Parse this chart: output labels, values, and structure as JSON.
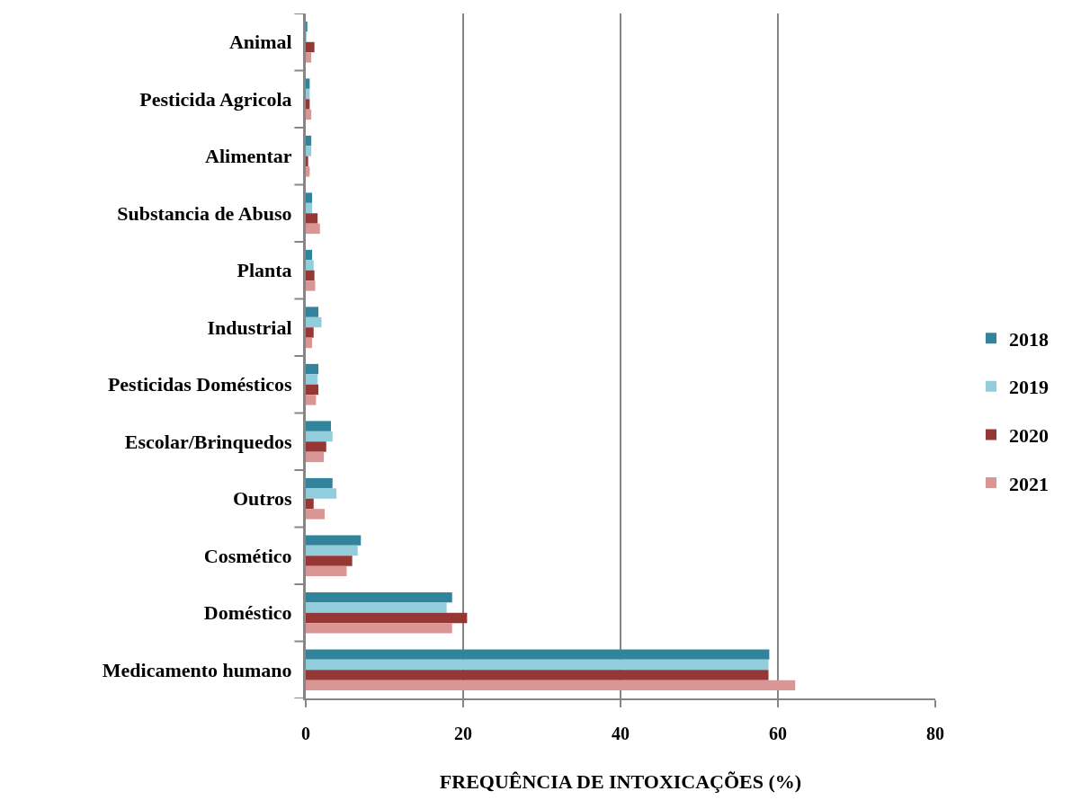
{
  "chart_data": {
    "type": "bar",
    "orientation": "horizontal",
    "categories": [
      "Animal",
      "Pesticida Agricola",
      "Alimentar",
      "Substancia de Abuso",
      "Planta",
      "Industrial",
      "Pesticidas Domésticos",
      "Escolar/Brinquedos",
      "Outros",
      "Cosmético",
      "Doméstico",
      "Medicamento humano"
    ],
    "series": [
      {
        "name": "2018",
        "color": "#31849b",
        "values": [
          0.2,
          0.5,
          0.7,
          0.8,
          0.8,
          1.6,
          1.6,
          3.2,
          3.4,
          7.0,
          18.6,
          58.9
        ]
      },
      {
        "name": "2019",
        "color": "#92cddc",
        "values": [
          0.1,
          0.5,
          0.7,
          0.8,
          1.0,
          2.0,
          1.5,
          3.4,
          3.9,
          6.6,
          17.9,
          58.8
        ]
      },
      {
        "name": "2020",
        "color": "#953735",
        "values": [
          1.1,
          0.5,
          0.3,
          1.5,
          1.1,
          1.0,
          1.6,
          2.6,
          1.0,
          5.9,
          20.5,
          58.8
        ]
      },
      {
        "name": "2021",
        "color": "#d99694",
        "values": [
          0.7,
          0.7,
          0.5,
          1.8,
          1.2,
          0.8,
          1.3,
          2.3,
          2.4,
          5.2,
          18.6,
          62.2
        ]
      }
    ],
    "xlabel": "FREQUÊNCIA DE INTOXICAÇÕES (%)",
    "xlim": [
      0,
      80
    ],
    "xticks": [
      0,
      20,
      40,
      60,
      80
    ],
    "grid": "x",
    "legend": "right"
  }
}
